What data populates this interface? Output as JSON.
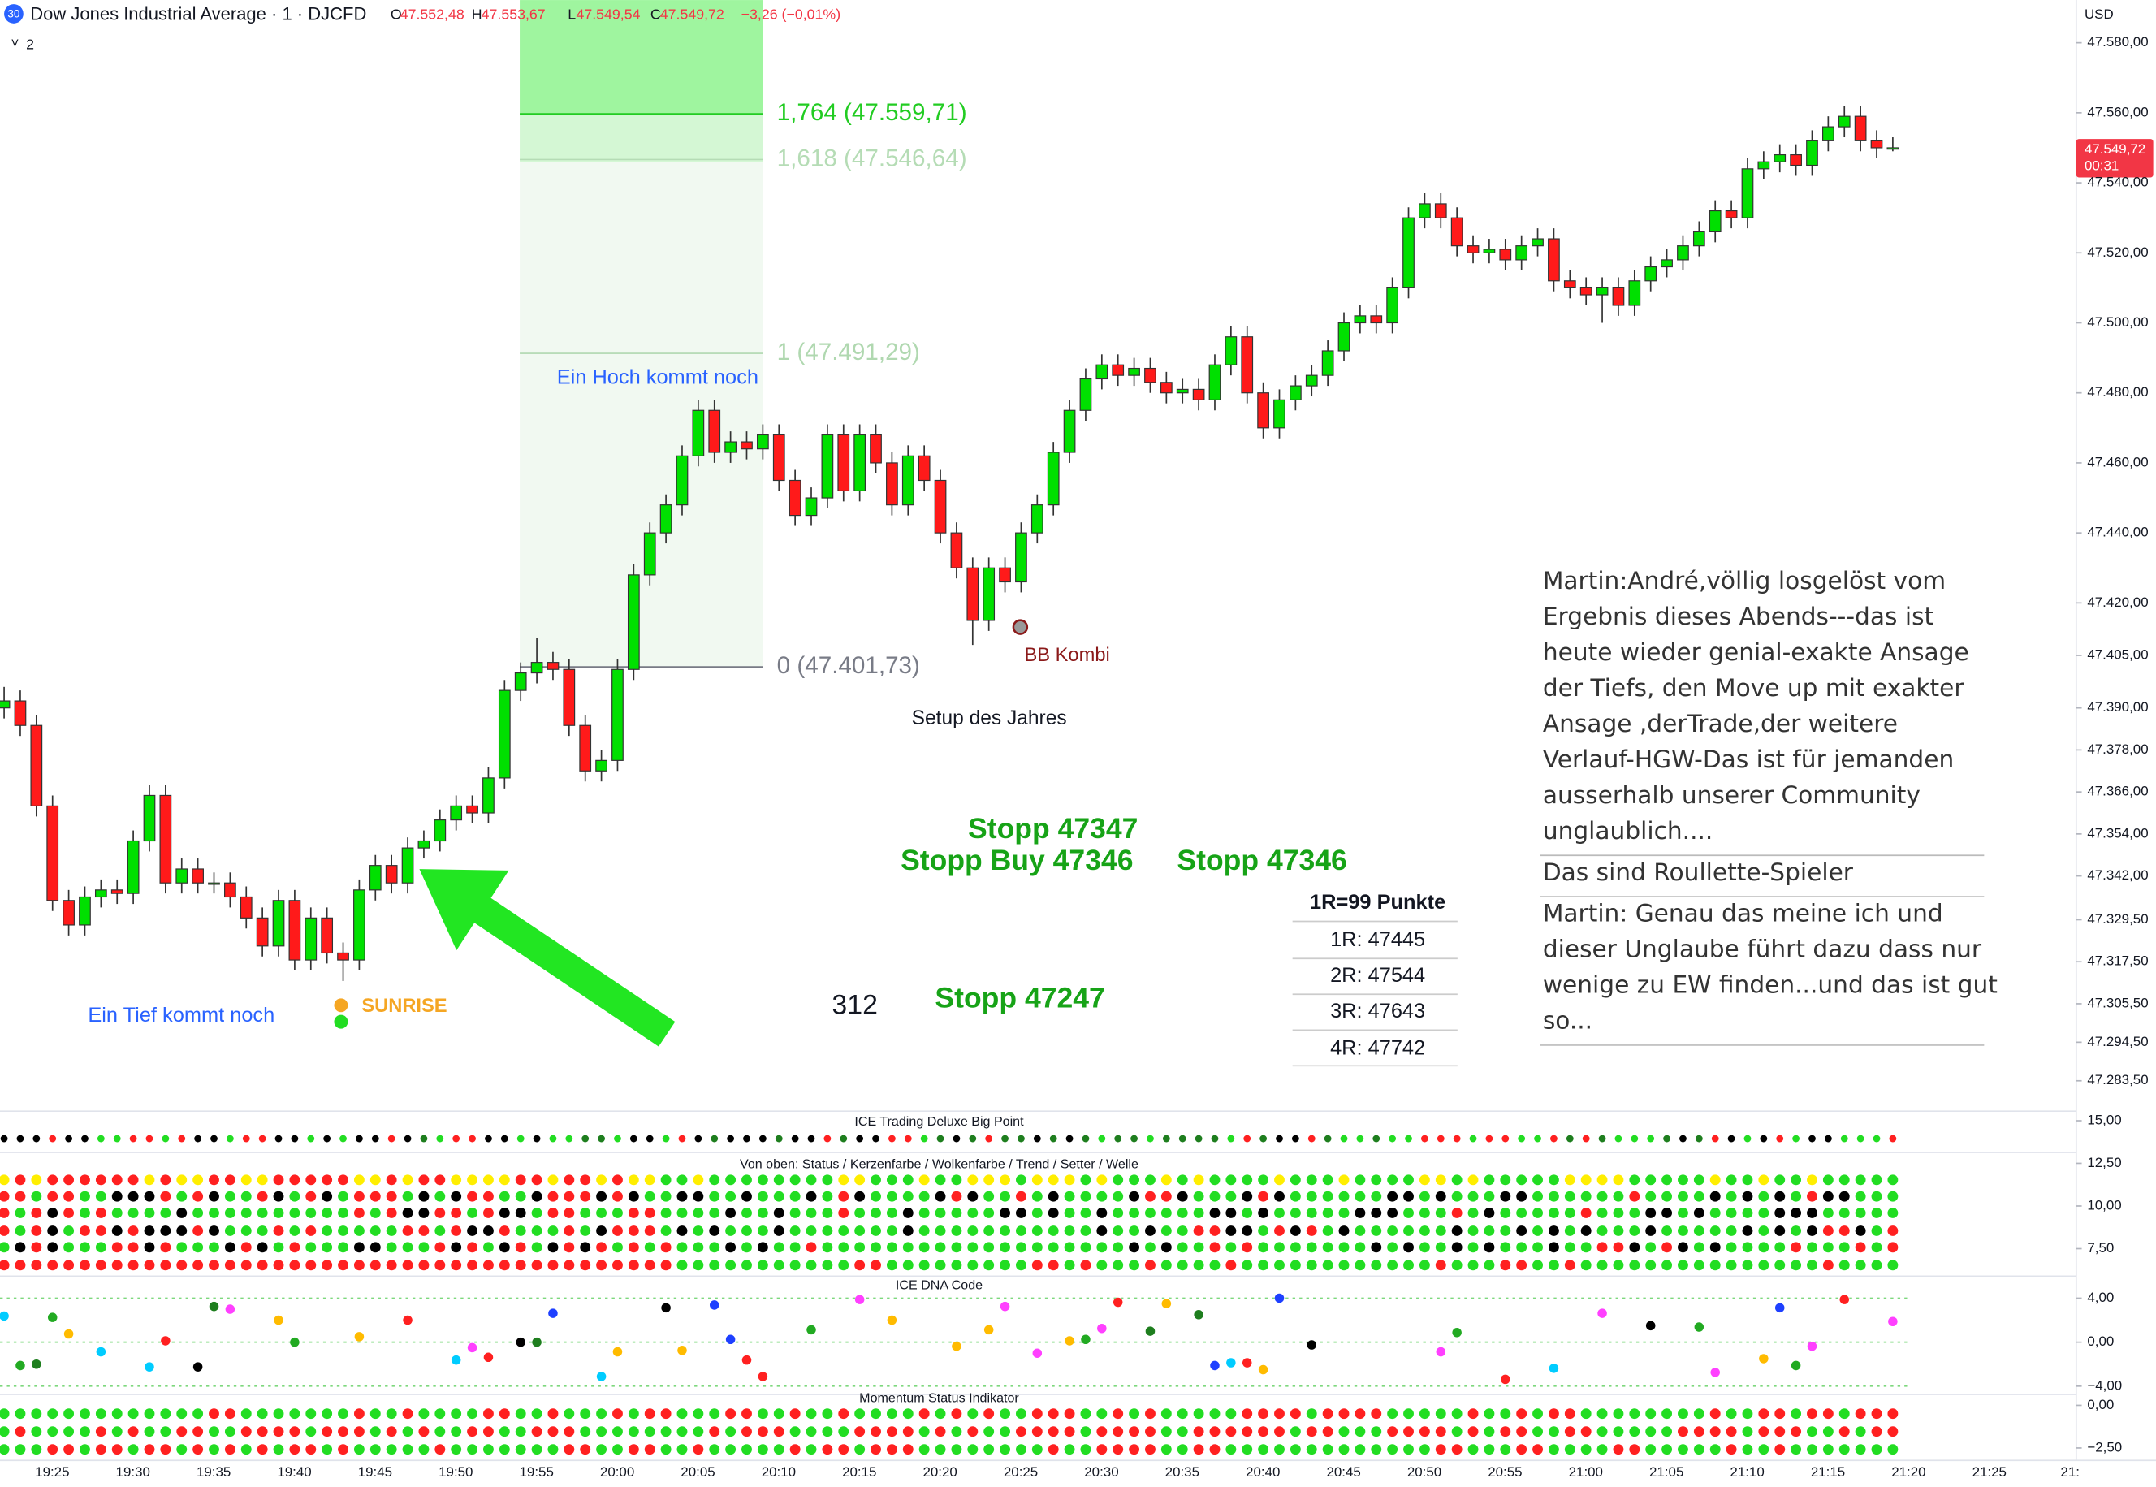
{
  "header": {
    "badge": "30",
    "symbol": "Dow Jones Industrial Average · 1 · DJCFD",
    "ohlc": [
      {
        "key": "O",
        "value": "47.552,48"
      },
      {
        "key": "H",
        "value": "47.553,67"
      },
      {
        "key": "L",
        "value": "47.549,54"
      },
      {
        "key": "C",
        "value": "47.549,72"
      }
    ],
    "change": "−3,26 (−0,01%)",
    "currency": "USD",
    "indicator_count": "2",
    "last_price": "47.549,72",
    "countdown": "00:31"
  },
  "chart_data": {
    "type": "candlestick",
    "up_color": "#00e000",
    "down_color": "#ff1a1a",
    "ylim": [
      47276,
      47592.2
    ],
    "yticks": [
      {
        "value": 47580,
        "label": "47.580,00"
      },
      {
        "value": 47560,
        "label": "47.560,00"
      },
      {
        "value": 47540,
        "label": "47.540,00"
      },
      {
        "value": 47520,
        "label": "47.520,00"
      },
      {
        "value": 47500,
        "label": "47.500,00"
      },
      {
        "value": 47480,
        "label": "47.480,00"
      },
      {
        "value": 47460,
        "label": "47.460,00"
      },
      {
        "value": 47440,
        "label": "47.440,00"
      },
      {
        "value": 47420,
        "label": "47.420,00"
      },
      {
        "value": 47405,
        "label": "47.405,00"
      },
      {
        "value": 47390,
        "label": "47.390,00"
      },
      {
        "value": 47378,
        "label": "47.378,00"
      },
      {
        "value": 47366,
        "label": "47.366,00"
      },
      {
        "value": 47354,
        "label": "47.354,00"
      },
      {
        "value": 47342,
        "label": "47.342,00"
      },
      {
        "value": 47329.5,
        "label": "47.329,50"
      },
      {
        "value": 47317.5,
        "label": "47.317,50"
      },
      {
        "value": 47305.5,
        "label": "47.305,50"
      },
      {
        "value": 47294.5,
        "label": "47.294,50"
      },
      {
        "value": 47283.5,
        "label": "47.283,50"
      }
    ],
    "xticks": [
      "19:25",
      "19:30",
      "19:35",
      "19:40",
      "19:45",
      "19:50",
      "19:55",
      "20:00",
      "20:05",
      "20:10",
      "20:15",
      "20:20",
      "20:25",
      "20:30",
      "20:35",
      "20:40",
      "20:45",
      "20:50",
      "20:55",
      "21:00",
      "21:05",
      "21:10",
      "21:15",
      "21:20",
      "21:25",
      "21:"
    ],
    "ohlc": [
      [
        47390,
        47396,
        47387,
        47392
      ],
      [
        47392,
        47395,
        47382,
        47385
      ],
      [
        47385,
        47388,
        47359,
        47362
      ],
      [
        47362,
        47365,
        47332,
        47335
      ],
      [
        47335,
        47338,
        47325,
        47328
      ],
      [
        47328,
        47339,
        47325,
        47336
      ],
      [
        47336,
        47341,
        47333,
        47338
      ],
      [
        47338,
        47341,
        47334,
        47337
      ],
      [
        47337,
        47355,
        47334,
        47352
      ],
      [
        47352,
        47368,
        47349,
        47365
      ],
      [
        47365,
        47368,
        47337,
        47340
      ],
      [
        47340,
        47347,
        47337,
        47344
      ],
      [
        47344,
        47347,
        47337,
        47340
      ],
      [
        47340,
        47343,
        47337,
        47340
      ],
      [
        47340,
        47343,
        47333,
        47336
      ],
      [
        47336,
        47339,
        47327,
        47330
      ],
      [
        47330,
        47333,
        47319,
        47322
      ],
      [
        47322,
        47338,
        47319,
        47335
      ],
      [
        47335,
        47338,
        47315,
        47318
      ],
      [
        47318,
        47333,
        47315,
        47330
      ],
      [
        47330,
        47333,
        47317,
        47320
      ],
      [
        47320,
        47323,
        47312,
        47318
      ],
      [
        47318,
        47341,
        47315,
        47338
      ],
      [
        47338,
        47348,
        47335,
        47345
      ],
      [
        47345,
        47348,
        47337,
        47340
      ],
      [
        47340,
        47353,
        47337,
        47350
      ],
      [
        47350,
        47355,
        47347,
        47352
      ],
      [
        47352,
        47361,
        47349,
        47358
      ],
      [
        47358,
        47365,
        47355,
        47362
      ],
      [
        47362,
        47365,
        47357,
        47360
      ],
      [
        47360,
        47373,
        47357,
        47370
      ],
      [
        47370,
        47398,
        47367,
        47395
      ],
      [
        47395,
        47403,
        47392,
        47400
      ],
      [
        47400,
        47410,
        47397,
        47403
      ],
      [
        47403,
        47406,
        47398,
        47401
      ],
      [
        47401,
        47404,
        47382,
        47385
      ],
      [
        47385,
        47388,
        47369,
        47372
      ],
      [
        47372,
        47378,
        47369,
        47375
      ],
      [
        47375,
        47404,
        47372,
        47401
      ],
      [
        47401,
        47431,
        47398,
        47428
      ],
      [
        47428,
        47443,
        47425,
        47440
      ],
      [
        47440,
        47451,
        47437,
        47448
      ],
      [
        47448,
        47465,
        47445,
        47462
      ],
      [
        47462,
        47478,
        47459,
        47475
      ],
      [
        47475,
        47478,
        47460,
        47463
      ],
      [
        47463,
        47469,
        47460,
        47466
      ],
      [
        47466,
        47469,
        47461,
        47464
      ],
      [
        47464,
        47471,
        47461,
        47468
      ],
      [
        47468,
        47471,
        47452,
        47455
      ],
      [
        47455,
        47458,
        47442,
        47445
      ],
      [
        47445,
        47453,
        47442,
        47450
      ],
      [
        47450,
        47471,
        47447,
        47468
      ],
      [
        47468,
        47471,
        47449,
        47452
      ],
      [
        47452,
        47471,
        47449,
        47468
      ],
      [
        47468,
        47471,
        47457,
        47460
      ],
      [
        47460,
        47463,
        47445,
        47448
      ],
      [
        47448,
        47465,
        47445,
        47462
      ],
      [
        47462,
        47465,
        47452,
        47455
      ],
      [
        47455,
        47458,
        47437,
        47440
      ],
      [
        47440,
        47443,
        47427,
        47430
      ],
      [
        47430,
        47433,
        47408,
        47415
      ],
      [
        47415,
        47433,
        47412,
        47430
      ],
      [
        47430,
        47433,
        47423,
        47426
      ],
      [
        47426,
        47443,
        47423,
        47440
      ],
      [
        47440,
        47451,
        47437,
        47448
      ],
      [
        47448,
        47466,
        47445,
        47463
      ],
      [
        47463,
        47478,
        47460,
        47475
      ],
      [
        47475,
        47487,
        47472,
        47484
      ],
      [
        47484,
        47491,
        47481,
        47488
      ],
      [
        47488,
        47491,
        47482,
        47485
      ],
      [
        47485,
        47490,
        47482,
        47487
      ],
      [
        47487,
        47490,
        47480,
        47483
      ],
      [
        47483,
        47486,
        47477,
        47480
      ],
      [
        47480,
        47484,
        47477,
        47481
      ],
      [
        47481,
        47484,
        47475,
        47478
      ],
      [
        47478,
        47491,
        47475,
        47488
      ],
      [
        47488,
        47499,
        47485,
        47496
      ],
      [
        47496,
        47499,
        47477,
        47480
      ],
      [
        47480,
        47483,
        47467,
        47470
      ],
      [
        47470,
        47481,
        47467,
        47478
      ],
      [
        47478,
        47485,
        47475,
        47482
      ],
      [
        47482,
        47488,
        47479,
        47485
      ],
      [
        47485,
        47495,
        47482,
        47492
      ],
      [
        47492,
        47503,
        47489,
        47500
      ],
      [
        47500,
        47505,
        47497,
        47502
      ],
      [
        47502,
        47505,
        47497,
        47500
      ],
      [
        47500,
        47513,
        47497,
        47510
      ],
      [
        47510,
        47533,
        47507,
        47530
      ],
      [
        47530,
        47537,
        47527,
        47534
      ],
      [
        47534,
        47537,
        47527,
        47530
      ],
      [
        47530,
        47533,
        47519,
        47522
      ],
      [
        47522,
        47525,
        47517,
        47520
      ],
      [
        47520,
        47524,
        47517,
        47521
      ],
      [
        47521,
        47524,
        47515,
        47518
      ],
      [
        47518,
        47525,
        47515,
        47522
      ],
      [
        47522,
        47527,
        47519,
        47524
      ],
      [
        47524,
        47527,
        47509,
        47512
      ],
      [
        47512,
        47515,
        47507,
        47510
      ],
      [
        47510,
        47513,
        47505,
        47508
      ],
      [
        47508,
        47513,
        47500,
        47510
      ],
      [
        47510,
        47513,
        47502,
        47505
      ],
      [
        47505,
        47515,
        47502,
        47512
      ],
      [
        47512,
        47519,
        47509,
        47516
      ],
      [
        47516,
        47521,
        47513,
        47518
      ],
      [
        47518,
        47525,
        47515,
        47522
      ],
      [
        47522,
        47529,
        47519,
        47526
      ],
      [
        47526,
        47535,
        47523,
        47532
      ],
      [
        47532,
        47535,
        47527,
        47530
      ],
      [
        47530,
        47547,
        47527,
        47544
      ],
      [
        47544,
        47549,
        47541,
        47546
      ],
      [
        47546,
        47551,
        47543,
        47548
      ],
      [
        47548,
        47551,
        47542,
        47545
      ],
      [
        47545,
        47555,
        47542,
        47552
      ],
      [
        47552,
        47559,
        47549,
        47556
      ],
      [
        47556,
        47562,
        47553,
        47559
      ],
      [
        47559,
        47562,
        47549,
        47552
      ],
      [
        47552,
        47555,
        47547,
        47550
      ],
      [
        47550,
        47553,
        47549,
        47550
      ]
    ],
    "fib_levels": [
      {
        "value": 47559.71,
        "label": "1,764 (47.559,71)",
        "color": "#22cc22"
      },
      {
        "value": 47546.64,
        "label": "1,618 (47.546,64)",
        "color": "#b5dcb5"
      },
      {
        "value": 47491.29,
        "label": "1 (47.491,29)",
        "color": "#b0d8b0"
      },
      {
        "value": 47401.73,
        "label": "0 (47.401,73)",
        "color": "#787b86"
      }
    ]
  },
  "annotations": {
    "high_note": "Ein Hoch kommt noch",
    "low_note": "Ein Tief kommt noch",
    "sunrise": "SUNRISE",
    "bb": "BB Kombi",
    "setup": "Setup des Jahres",
    "stops": [
      "Stopp 47347",
      "Stopp Buy 47346",
      "Stopp 47346",
      "Stopp 47247"
    ],
    "fragment": "312",
    "rr_table": [
      "1R=99 Punkte",
      "1R: 47445",
      "2R: 47544",
      "3R: 47643",
      "4R: 47742"
    ]
  },
  "comment": [
    [
      "Martin:André,völlig losgelöst vom",
      "Ergebnis dieses Abends---das ist",
      "heute wieder genial-exakte Ansage",
      "der Tiefs, den Move up mit exakter",
      "Ansage ,derTrade,der weitere",
      "Verlauf-HGW-Das ist für jemanden",
      "ausserhalb unserer Community",
      "unglaublich...."
    ],
    [
      "Das sind Roullette-Spieler"
    ],
    [
      "Martin: Genau das meine ich und",
      "dieser Unglaube führt dazu dass nur",
      "wenige zu EW finden...und das ist gut",
      "so..."
    ]
  ],
  "panes": [
    {
      "title": "ICE Trading Deluxe Big Point",
      "ylim": [
        13.23,
        15.4
      ],
      "yticks": [
        {
          "value": 15,
          "label": "15,00"
        }
      ]
    },
    {
      "title": "Von oben: Status / Kerzenfarbe / Wolkenfarbe / Trend / Setter / Welle",
      "ylim": [
        6.13,
        12.98
      ],
      "yticks": [
        {
          "value": 12.5,
          "label": "12,50"
        },
        {
          "value": 10,
          "label": "10,00"
        },
        {
          "value": 7.5,
          "label": "7,50"
        }
      ]
    },
    {
      "title": "ICE DNA Code",
      "ylim": [
        -4.875,
        5.75
      ],
      "yticks": [
        {
          "value": 4,
          "label": "4,00"
        },
        {
          "value": 0,
          "label": "0,00"
        },
        {
          "value": -4,
          "label": "−4,00"
        }
      ]
    },
    {
      "title": "Momentum Status Indikator",
      "ylim": [
        -3.23,
        0.56
      ],
      "yticks": [
        {
          "value": 0,
          "label": "0,00"
        },
        {
          "value": -2.5,
          "label": "−2,50"
        }
      ]
    }
  ]
}
